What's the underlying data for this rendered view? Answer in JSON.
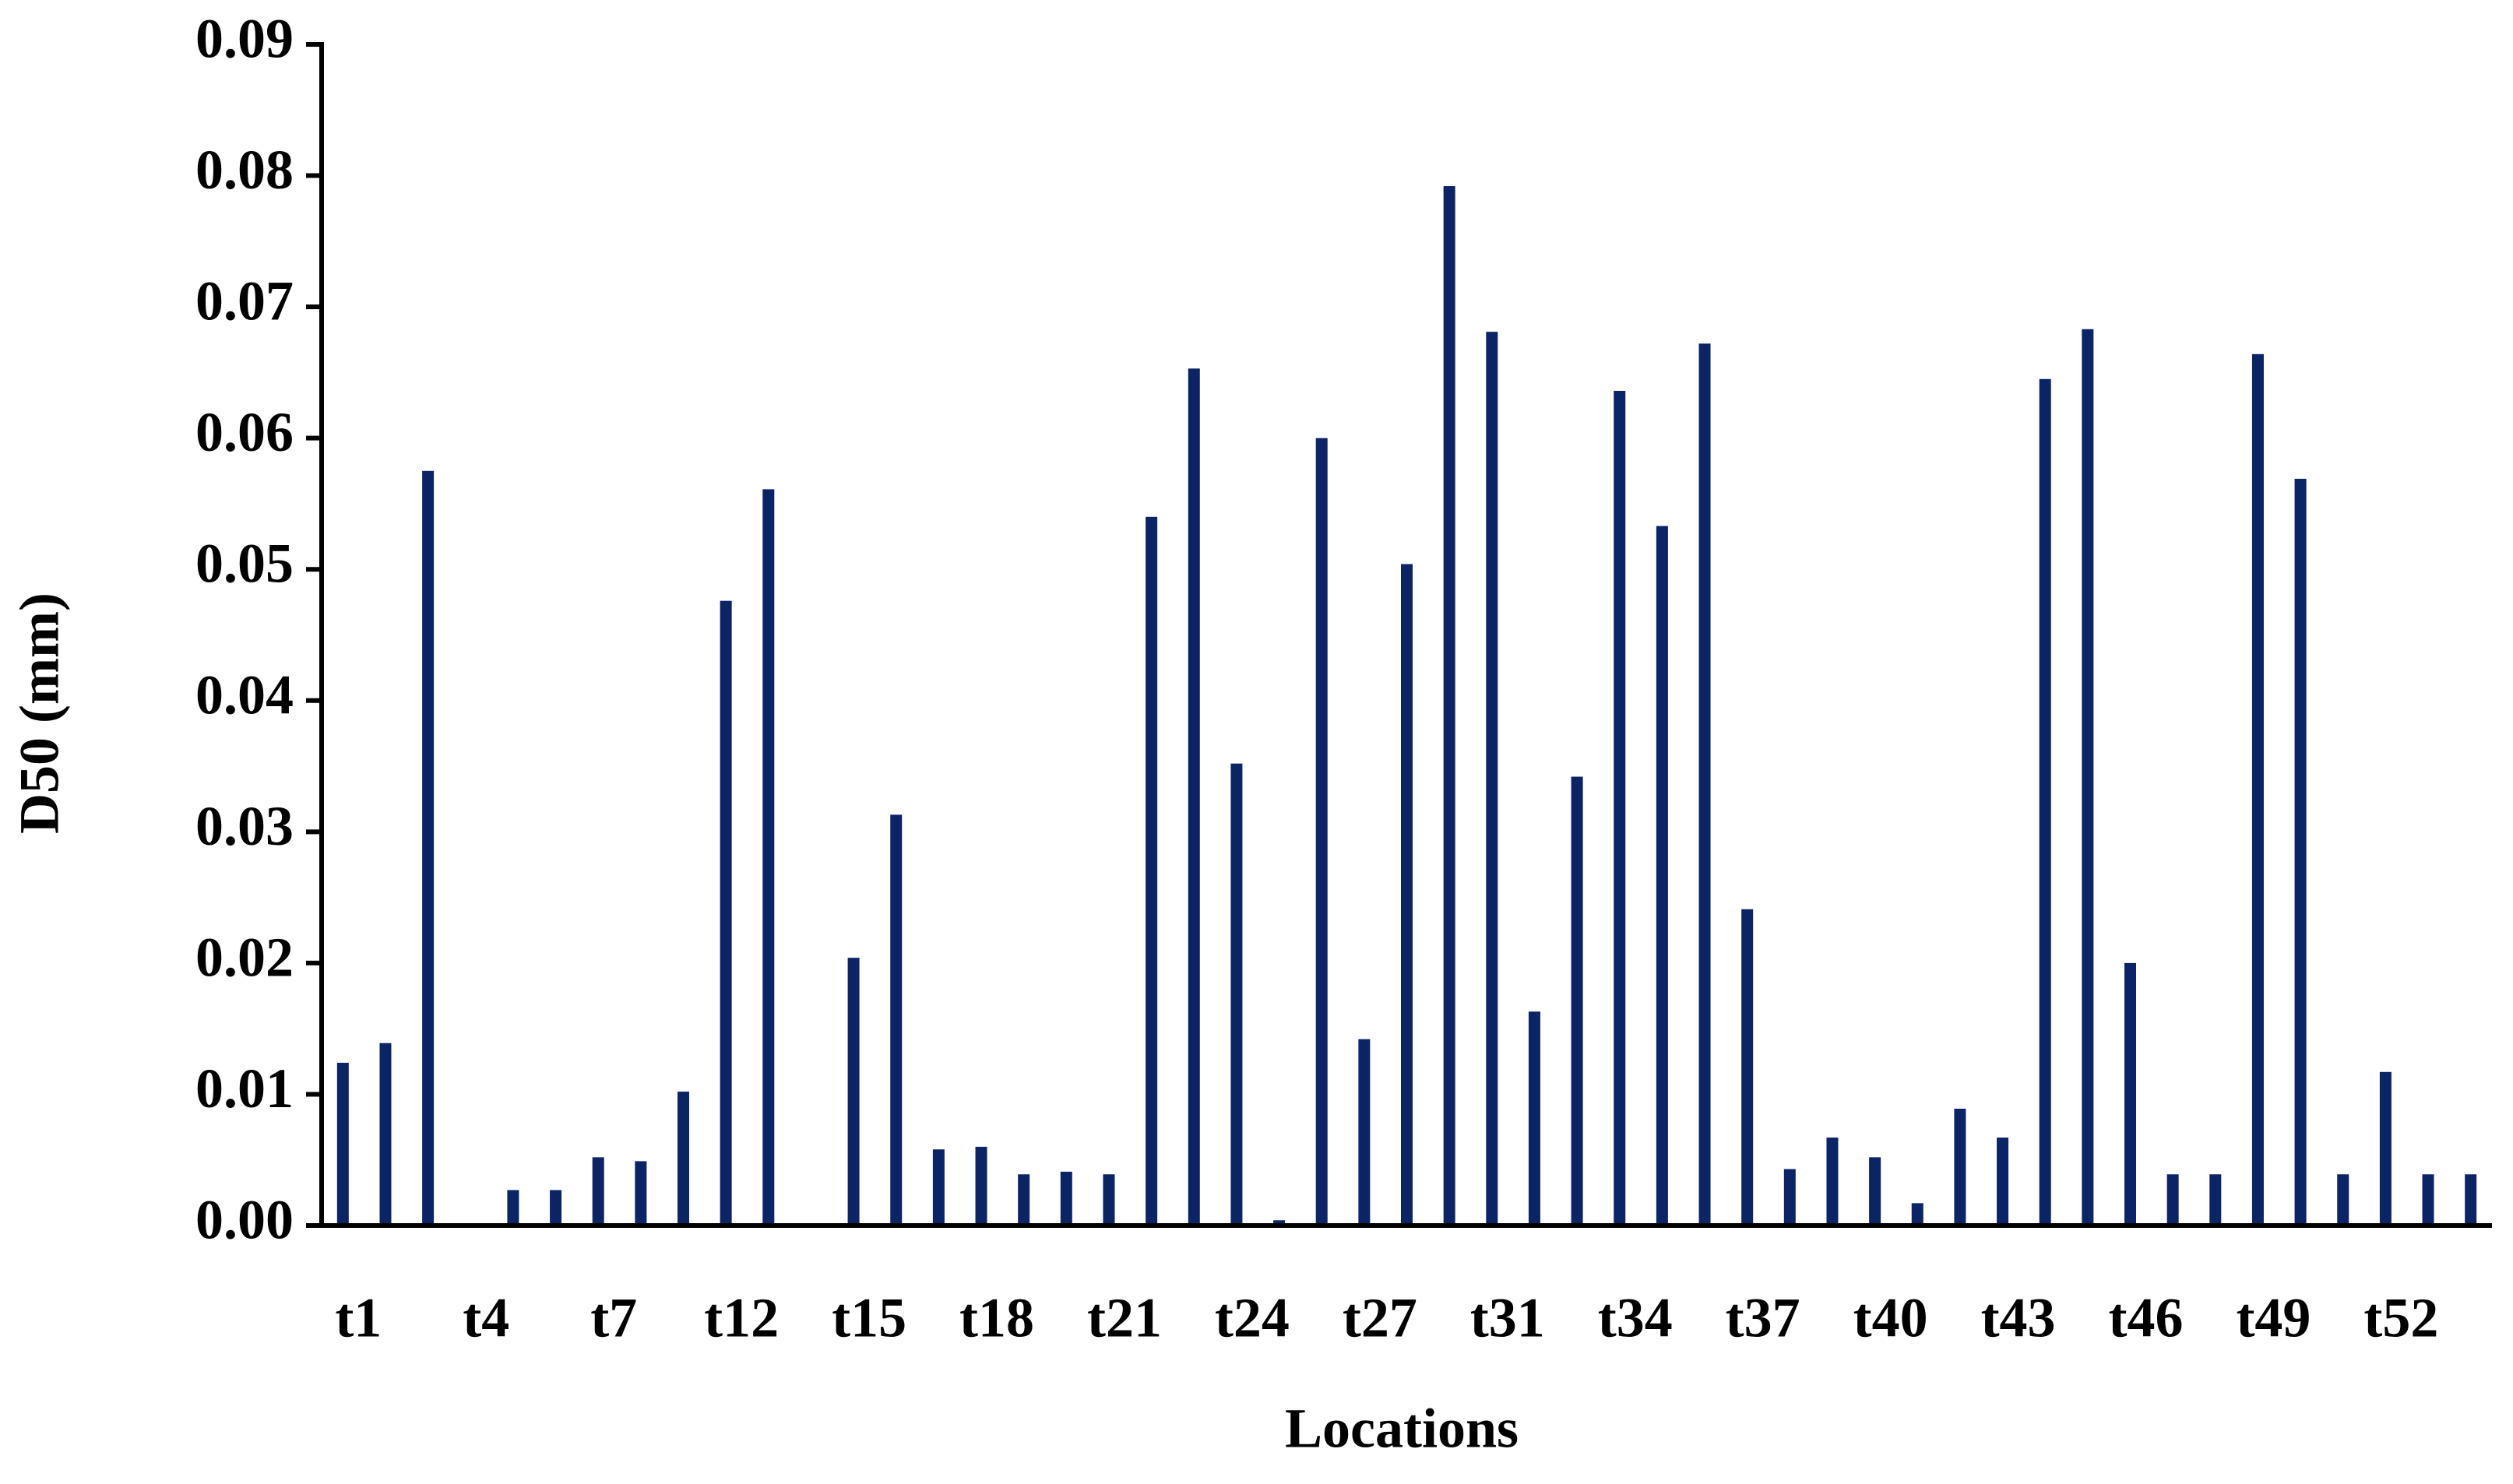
{
  "chart_data": {
    "type": "bar",
    "x_label": "Locations",
    "y_label": "D50 (mm)",
    "categories": [
      "t1",
      null,
      null,
      "t4",
      null,
      null,
      "t7",
      null,
      null,
      "t12",
      null,
      null,
      "t15",
      null,
      null,
      "t18",
      null,
      null,
      "t21",
      null,
      null,
      "t24",
      null,
      null,
      "t27",
      null,
      null,
      "t31",
      null,
      null,
      "t34",
      null,
      null,
      "t37",
      null,
      null,
      "t40",
      null,
      null,
      "t43",
      null,
      null,
      "t46",
      null,
      null,
      "t49",
      null,
      null,
      "t52",
      null,
      null
    ],
    "values": [
      0.0124,
      0.0139,
      0.0575,
      0,
      0.0027,
      0.0027,
      0.0052,
      0.0049,
      0.0102,
      0.0476,
      0.0561,
      0,
      0.0204,
      0.0313,
      0.0058,
      0.006,
      0.0039,
      0.0041,
      0.0039,
      0.054,
      0.0653,
      0.0352,
      0.0004,
      0.06,
      0.0142,
      0.0504,
      0.0792,
      0.0681,
      0.0163,
      0.0342,
      0.0636,
      0.0533,
      0.0672,
      0.0241,
      0.0043,
      0.0067,
      0.0052,
      0.0017,
      0.0089,
      0.0067,
      0.0645,
      0.0683,
      0.02,
      0.0039,
      0.0039,
      0.0664,
      0.0569,
      0.0039,
      0.0117,
      0.0039,
      0.0039
    ],
    "color": "#0b2466",
    "ylim": [
      0,
      0.09
    ],
    "yticks": [
      {
        "value": 0,
        "label": "0.00"
      },
      0.01,
      0.02,
      0.03,
      0.04,
      0.05,
      0.06,
      0.07,
      0.08,
      0.09
    ],
    "grid": false
  }
}
